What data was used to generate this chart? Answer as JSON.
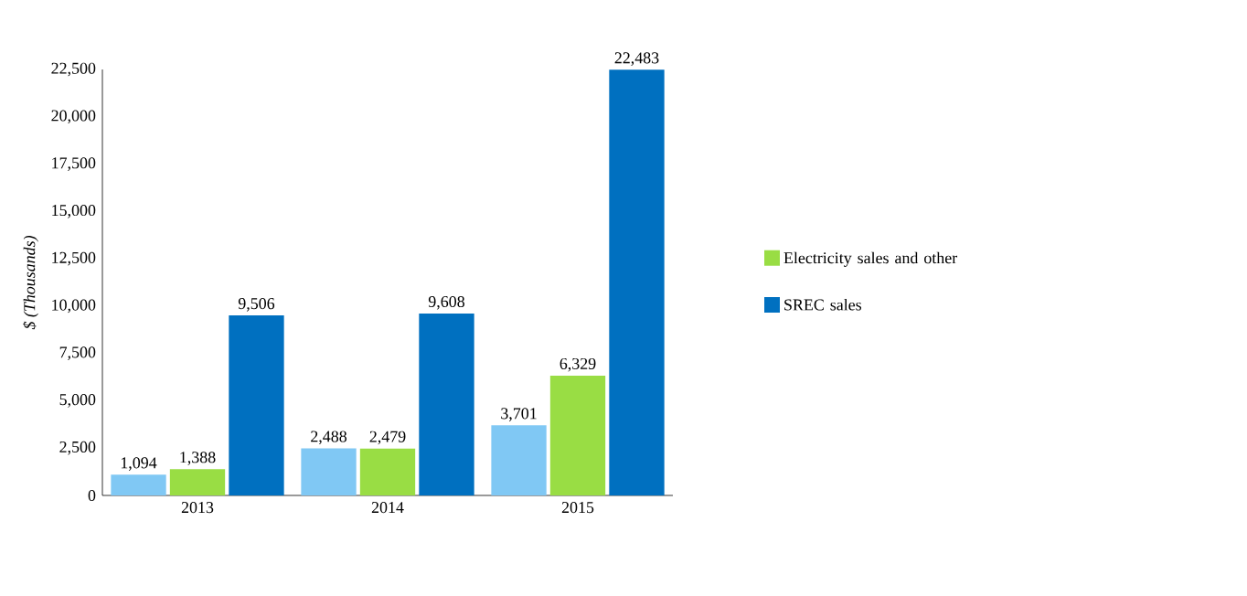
{
  "chart_data": {
    "type": "bar",
    "ylabel": "$ (Thousands)",
    "categories": [
      "2013",
      "2014",
      "2015"
    ],
    "ylim": [
      0,
      22500
    ],
    "yticks": [
      {
        "value": 0,
        "label": "0"
      },
      {
        "value": 2500,
        "label": "2,500"
      },
      {
        "value": 5000,
        "label": "5,000"
      },
      {
        "value": 7500,
        "label": "7,500"
      },
      {
        "value": 10000,
        "label": "10,000"
      },
      {
        "value": 12500,
        "label": "12,500"
      },
      {
        "value": 15000,
        "label": "15,000"
      },
      {
        "value": 17500,
        "label": "17,500"
      },
      {
        "value": 20000,
        "label": "20,000"
      },
      {
        "value": 22500,
        "label": "22,500"
      }
    ],
    "legend": "right",
    "grid": false,
    "series": [
      {
        "color": "#80c8f4",
        "values": [
          1094,
          2488,
          3701
        ],
        "value_labels": [
          "1,094",
          "2,488",
          "3,701"
        ]
      },
      {
        "name": "Electricity sales and other",
        "color": "#99dd44",
        "values": [
          1388,
          2479,
          6329
        ],
        "value_labels": [
          "1,388",
          "2,479",
          "6,329"
        ]
      },
      {
        "name": "SREC sales",
        "color": "#0070c0",
        "values": [
          9506,
          9608,
          22483
        ],
        "value_labels": [
          "9,506",
          "9,608",
          "22,483"
        ]
      }
    ]
  }
}
